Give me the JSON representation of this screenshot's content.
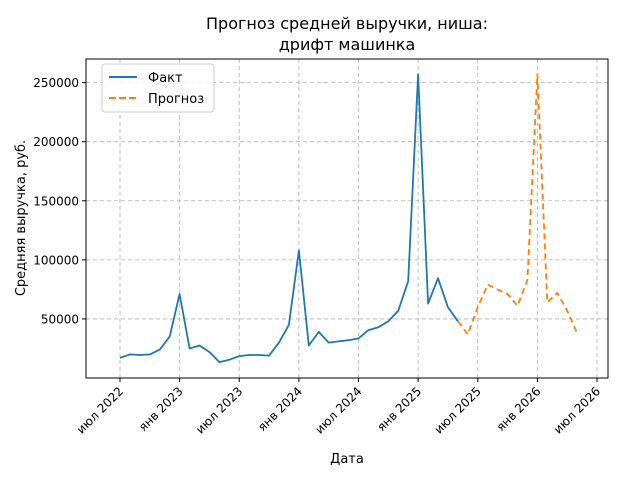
{
  "chart_data": {
    "type": "line",
    "title_line1": "Прогноз средней выручки, ниша:",
    "title_line2": "дрифт машинка",
    "xlabel": "Дата",
    "ylabel": "Средняя выручка, руб.",
    "grid": true,
    "legend_position": "top-left",
    "x_ticks": [
      "июл 2022",
      "янв 2023",
      "июл 2023",
      "янв 2024",
      "июл 2024",
      "янв 2025",
      "июл 2025",
      "янв 2026",
      "июл 2026"
    ],
    "y_ticks": [
      "50000",
      "100000",
      "150000",
      "200000",
      "250000"
    ],
    "ylim": [
      0,
      270000
    ],
    "series": [
      {
        "name": "Факт",
        "color": "#1f77b4",
        "style": "solid",
        "points": [
          [
            "2022-07",
            17000
          ],
          [
            "2022-08",
            20000
          ],
          [
            "2022-09",
            19500
          ],
          [
            "2022-10",
            20000
          ],
          [
            "2022-11",
            24000
          ],
          [
            "2022-12",
            35000
          ],
          [
            "2023-01",
            71000
          ],
          [
            "2023-02",
            25000
          ],
          [
            "2023-03",
            27500
          ],
          [
            "2023-04",
            22000
          ],
          [
            "2023-05",
            13500
          ],
          [
            "2023-06",
            15500
          ],
          [
            "2023-07",
            18500
          ],
          [
            "2023-08",
            19500
          ],
          [
            "2023-09",
            19500
          ],
          [
            "2023-10",
            19000
          ],
          [
            "2023-11",
            30000
          ],
          [
            "2023-12",
            45000
          ],
          [
            "2024-01",
            108000
          ],
          [
            "2024-02",
            27500
          ],
          [
            "2024-03",
            39000
          ],
          [
            "2024-04",
            30000
          ],
          [
            "2024-05",
            31000
          ],
          [
            "2024-06",
            32000
          ],
          [
            "2024-07",
            33500
          ],
          [
            "2024-08",
            40500
          ],
          [
            "2024-09",
            43000
          ],
          [
            "2024-10",
            48000
          ],
          [
            "2024-11",
            57000
          ],
          [
            "2024-12",
            82000
          ],
          [
            "2025-01",
            257000
          ],
          [
            "2025-02",
            63000
          ],
          [
            "2025-03",
            84500
          ],
          [
            "2025-04",
            60000
          ],
          [
            "2025-05",
            48000
          ]
        ]
      },
      {
        "name": "Прогноз",
        "color": "#ff7f0e",
        "style": "dashed",
        "points": [
          [
            "2025-05",
            48000
          ],
          [
            "2025-06",
            37000
          ],
          [
            "2025-07",
            60000
          ],
          [
            "2025-08",
            79000
          ],
          [
            "2025-09",
            75000
          ],
          [
            "2025-10",
            71000
          ],
          [
            "2025-11",
            61000
          ],
          [
            "2025-12",
            83000
          ],
          [
            "2026-01",
            257000
          ],
          [
            "2026-02",
            64000
          ],
          [
            "2026-03",
            72000
          ],
          [
            "2026-04",
            57000
          ],
          [
            "2026-05",
            38000
          ]
        ]
      }
    ]
  }
}
